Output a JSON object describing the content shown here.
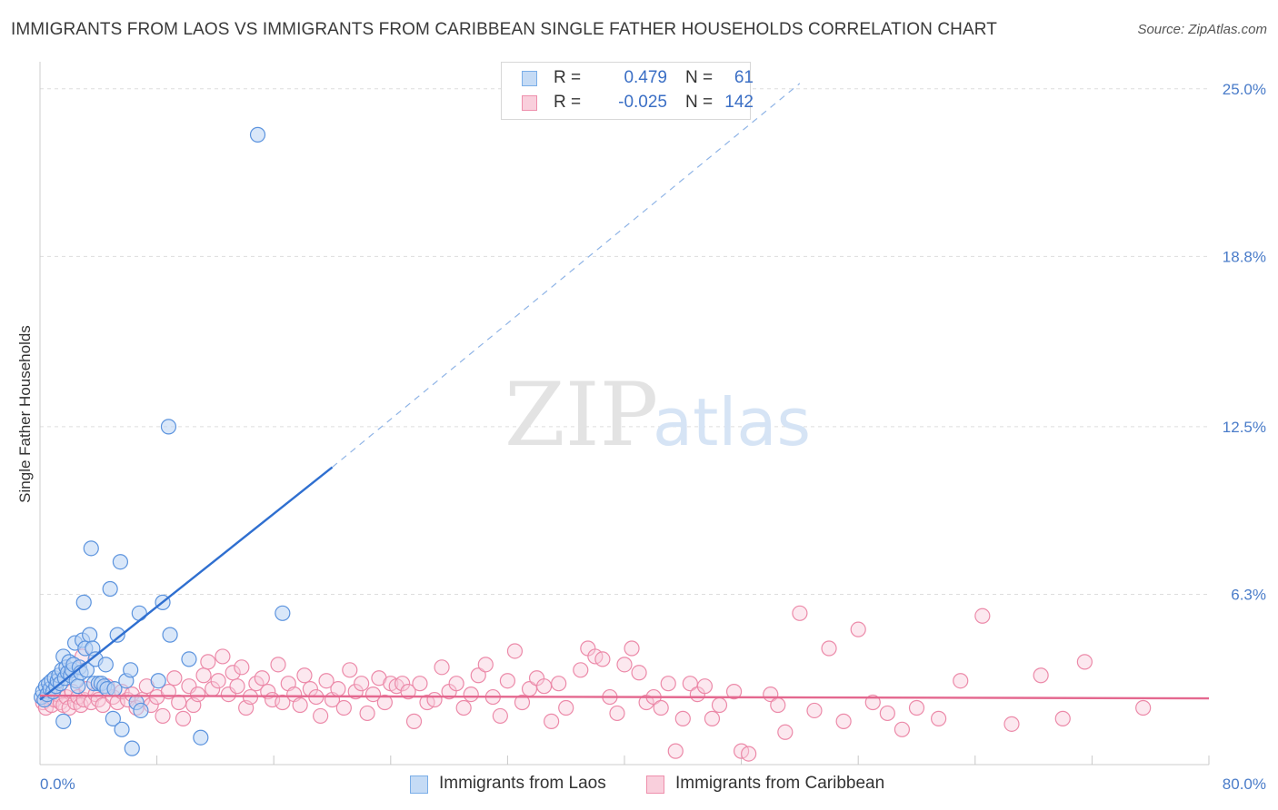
{
  "header": {
    "title": "IMMIGRANTS FROM LAOS VS IMMIGRANTS FROM CARIBBEAN SINGLE FATHER HOUSEHOLDS CORRELATION CHART",
    "source": "Source: ZipAtlas.com"
  },
  "watermark": {
    "zip": "ZIP",
    "atlas": "atlas"
  },
  "legend": {
    "r_label": "R =",
    "n_label": "N =",
    "series": [
      {
        "name": "Immigrants from Laos",
        "r": "0.479",
        "n": "61",
        "color": "#7aaee8",
        "fill": "#c5dbf5"
      },
      {
        "name": "Immigrants from Caribbean",
        "r": "-0.025",
        "n": "142",
        "color": "#ee8fac",
        "fill": "#f9cfdc"
      }
    ]
  },
  "chart_data": {
    "type": "scatter",
    "title": "IMMIGRANTS FROM LAOS VS IMMIGRANTS FROM CARIBBEAN SINGLE FATHER HOUSEHOLDS CORRELATION CHART",
    "xlabel": "",
    "ylabel": "Single Father Households",
    "xlim": [
      0,
      80
    ],
    "ylim": [
      0,
      26.0
    ],
    "x_tick_labels": [
      "0.0%",
      "80.0%"
    ],
    "y_ticks": [
      6.3,
      12.5,
      18.8,
      25.0
    ],
    "y_tick_labels": [
      "6.3%",
      "12.5%",
      "18.8%",
      "25.0%"
    ],
    "grid": true,
    "legend_position": "top-center",
    "series": [
      {
        "name": "Immigrants from Laos",
        "color": "#5b93de",
        "trend": {
          "x0": 0,
          "y0": 2.4,
          "x1": 20.0,
          "y1": 11.0,
          "dashed_to_x": 52,
          "dashed_to_y": 25.2
        },
        "points": [
          [
            0.1,
            2.5
          ],
          [
            0.2,
            2.7
          ],
          [
            0.3,
            2.4
          ],
          [
            0.4,
            2.9
          ],
          [
            0.5,
            2.6
          ],
          [
            0.6,
            3.0
          ],
          [
            0.7,
            2.8
          ],
          [
            0.8,
            3.1
          ],
          [
            0.9,
            2.7
          ],
          [
            1.0,
            3.2
          ],
          [
            1.1,
            2.9
          ],
          [
            1.2,
            3.1
          ],
          [
            1.3,
            3.3
          ],
          [
            1.4,
            3.0
          ],
          [
            1.5,
            3.5
          ],
          [
            1.6,
            4.0
          ],
          [
            1.7,
            3.2
          ],
          [
            1.8,
            3.6
          ],
          [
            1.9,
            3.4
          ],
          [
            2.0,
            3.8
          ],
          [
            2.1,
            3.3
          ],
          [
            2.2,
            3.5
          ],
          [
            2.3,
            3.7
          ],
          [
            2.4,
            4.5
          ],
          [
            2.5,
            3.1
          ],
          [
            2.6,
            2.9
          ],
          [
            2.7,
            3.6
          ],
          [
            2.8,
            3.4
          ],
          [
            2.9,
            4.6
          ],
          [
            3.0,
            6.0
          ],
          [
            3.1,
            4.3
          ],
          [
            3.2,
            3.5
          ],
          [
            3.4,
            4.8
          ],
          [
            3.5,
            8.0
          ],
          [
            3.6,
            4.3
          ],
          [
            3.7,
            3.0
          ],
          [
            3.8,
            3.9
          ],
          [
            4.0,
            3.0
          ],
          [
            4.2,
            3.0
          ],
          [
            4.4,
            2.9
          ],
          [
            4.5,
            3.7
          ],
          [
            4.6,
            2.8
          ],
          [
            4.8,
            6.5
          ],
          [
            5.0,
            1.7
          ],
          [
            5.1,
            2.8
          ],
          [
            5.3,
            4.8
          ],
          [
            5.5,
            7.5
          ],
          [
            5.6,
            1.3
          ],
          [
            5.9,
            3.1
          ],
          [
            6.2,
            3.5
          ],
          [
            6.3,
            0.6
          ],
          [
            6.6,
            2.3
          ],
          [
            6.8,
            5.6
          ],
          [
            6.9,
            2.0
          ],
          [
            8.1,
            3.1
          ],
          [
            8.4,
            6.0
          ],
          [
            8.8,
            12.5
          ],
          [
            8.9,
            4.8
          ],
          [
            10.2,
            3.9
          ],
          [
            11.0,
            1.0
          ],
          [
            14.9,
            23.3
          ],
          [
            16.6,
            5.6
          ],
          [
            1.6,
            1.6
          ]
        ]
      },
      {
        "name": "Immigrants from Caribbean",
        "color": "#ec8aa9",
        "trend": {
          "x0": 0,
          "y0": 2.55,
          "x1": 80,
          "y1": 2.45
        },
        "points": [
          [
            0.2,
            2.3
          ],
          [
            0.4,
            2.1
          ],
          [
            0.6,
            2.5
          ],
          [
            0.8,
            2.2
          ],
          [
            1.0,
            2.4
          ],
          [
            1.2,
            2.6
          ],
          [
            1.4,
            2.3
          ],
          [
            1.6,
            2.2
          ],
          [
            1.8,
            2.5
          ],
          [
            2.0,
            2.1
          ],
          [
            2.2,
            2.7
          ],
          [
            2.4,
            2.3
          ],
          [
            2.6,
            2.5
          ],
          [
            2.8,
            2.2
          ],
          [
            3.0,
            2.4
          ],
          [
            3.2,
            2.8
          ],
          [
            3.5,
            2.3
          ],
          [
            3.8,
            2.6
          ],
          [
            4.0,
            2.4
          ],
          [
            4.3,
            2.2
          ],
          [
            4.6,
            2.9
          ],
          [
            5.0,
            2.5
          ],
          [
            5.3,
            2.3
          ],
          [
            5.6,
            2.7
          ],
          [
            6.0,
            2.4
          ],
          [
            6.3,
            2.6
          ],
          [
            6.6,
            2.1
          ],
          [
            7.0,
            2.4
          ],
          [
            7.3,
            2.9
          ],
          [
            7.6,
            2.2
          ],
          [
            8.0,
            2.5
          ],
          [
            8.4,
            1.8
          ],
          [
            8.8,
            2.7
          ],
          [
            9.2,
            3.2
          ],
          [
            9.5,
            2.3
          ],
          [
            9.8,
            1.7
          ],
          [
            10.2,
            2.9
          ],
          [
            10.5,
            2.2
          ],
          [
            10.8,
            2.6
          ],
          [
            11.2,
            3.3
          ],
          [
            11.5,
            3.8
          ],
          [
            11.8,
            2.8
          ],
          [
            12.2,
            3.1
          ],
          [
            12.5,
            4.0
          ],
          [
            12.9,
            2.6
          ],
          [
            13.2,
            3.4
          ],
          [
            13.5,
            2.9
          ],
          [
            13.8,
            3.6
          ],
          [
            14.1,
            2.1
          ],
          [
            14.4,
            2.5
          ],
          [
            14.8,
            3.0
          ],
          [
            15.2,
            3.2
          ],
          [
            15.6,
            2.7
          ],
          [
            15.9,
            2.4
          ],
          [
            16.3,
            3.7
          ],
          [
            16.6,
            2.3
          ],
          [
            17.0,
            3.0
          ],
          [
            17.4,
            2.6
          ],
          [
            17.8,
            2.2
          ],
          [
            18.1,
            3.3
          ],
          [
            18.5,
            2.8
          ],
          [
            18.9,
            2.5
          ],
          [
            19.2,
            1.8
          ],
          [
            19.6,
            3.1
          ],
          [
            20.0,
            2.4
          ],
          [
            20.4,
            2.8
          ],
          [
            20.8,
            2.1
          ],
          [
            21.2,
            3.5
          ],
          [
            21.6,
            2.7
          ],
          [
            22.0,
            3.0
          ],
          [
            22.4,
            1.9
          ],
          [
            22.8,
            2.6
          ],
          [
            23.2,
            3.2
          ],
          [
            23.6,
            2.3
          ],
          [
            24.0,
            3.0
          ],
          [
            24.4,
            2.9
          ],
          [
            24.8,
            3.0
          ],
          [
            25.2,
            2.7
          ],
          [
            25.6,
            1.6
          ],
          [
            26.0,
            3.0
          ],
          [
            26.5,
            2.3
          ],
          [
            27.0,
            2.4
          ],
          [
            27.5,
            3.6
          ],
          [
            28.0,
            2.7
          ],
          [
            28.5,
            3.0
          ],
          [
            29.0,
            2.1
          ],
          [
            29.5,
            2.6
          ],
          [
            30.0,
            3.3
          ],
          [
            30.5,
            3.7
          ],
          [
            31.0,
            2.5
          ],
          [
            31.5,
            1.8
          ],
          [
            32.0,
            3.1
          ],
          [
            32.5,
            4.2
          ],
          [
            33.0,
            2.3
          ],
          [
            33.5,
            2.8
          ],
          [
            34.0,
            3.2
          ],
          [
            34.5,
            2.9
          ],
          [
            35.0,
            1.6
          ],
          [
            35.5,
            3.0
          ],
          [
            36.0,
            2.1
          ],
          [
            37.0,
            3.5
          ],
          [
            37.5,
            4.3
          ],
          [
            38.0,
            4.0
          ],
          [
            38.5,
            3.9
          ],
          [
            39.0,
            2.5
          ],
          [
            39.5,
            1.9
          ],
          [
            40.0,
            3.7
          ],
          [
            40.5,
            4.3
          ],
          [
            41.0,
            3.4
          ],
          [
            41.5,
            2.3
          ],
          [
            42.0,
            2.5
          ],
          [
            42.5,
            2.1
          ],
          [
            43.0,
            3.0
          ],
          [
            43.5,
            0.5
          ],
          [
            44.0,
            1.7
          ],
          [
            44.5,
            3.0
          ],
          [
            45.0,
            2.6
          ],
          [
            45.5,
            2.9
          ],
          [
            46.0,
            1.7
          ],
          [
            46.5,
            2.2
          ],
          [
            47.5,
            2.7
          ],
          [
            48.0,
            0.5
          ],
          [
            48.5,
            0.4
          ],
          [
            50.0,
            2.6
          ],
          [
            50.5,
            2.2
          ],
          [
            51.0,
            1.2
          ],
          [
            52.0,
            5.6
          ],
          [
            53.0,
            2.0
          ],
          [
            54.0,
            4.3
          ],
          [
            55.0,
            1.6
          ],
          [
            56.0,
            5.0
          ],
          [
            57.0,
            2.3
          ],
          [
            58.0,
            1.9
          ],
          [
            59.0,
            1.3
          ],
          [
            60.0,
            2.1
          ],
          [
            61.5,
            1.7
          ],
          [
            63.0,
            3.1
          ],
          [
            64.5,
            5.5
          ],
          [
            66.5,
            1.5
          ],
          [
            68.5,
            3.3
          ],
          [
            70.0,
            1.7
          ],
          [
            71.5,
            3.8
          ],
          [
            75.5,
            2.1
          ],
          [
            2.9,
            4.0
          ]
        ]
      }
    ]
  }
}
